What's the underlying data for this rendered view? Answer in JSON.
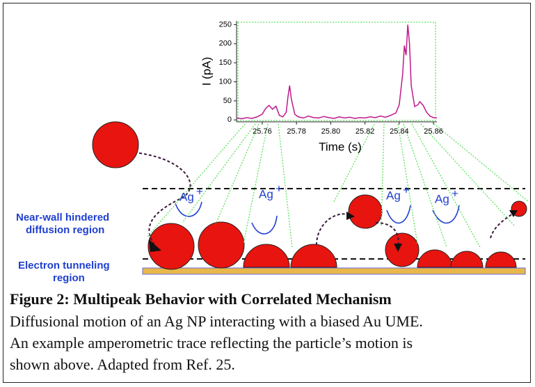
{
  "chart_data": {
    "type": "line",
    "xlabel": "Time (s)",
    "ylabel": "I (pA)",
    "x": [
      25.745,
      25.748,
      25.751,
      25.754,
      25.757,
      25.76,
      25.762,
      25.764,
      25.766,
      25.768,
      25.77,
      25.772,
      25.774,
      25.775,
      25.776,
      25.777,
      25.779,
      25.781,
      25.784,
      25.787,
      25.79,
      25.793,
      25.796,
      25.799,
      25.802,
      25.805,
      25.808,
      25.811,
      25.814,
      25.817,
      25.82,
      25.823,
      25.826,
      25.829,
      25.832,
      25.835,
      25.838,
      25.84,
      25.842,
      25.843,
      25.844,
      25.845,
      25.846,
      25.847,
      25.849,
      25.851,
      25.852,
      25.854,
      25.856,
      25.858,
      25.86,
      25.862
    ],
    "series": [
      {
        "color": "#c0188c",
        "values": [
          5,
          3,
          6,
          4,
          8,
          15,
          30,
          38,
          28,
          36,
          12,
          8,
          20,
          60,
          90,
          55,
          15,
          8,
          5,
          10,
          6,
          5,
          9,
          6,
          4,
          8,
          5,
          7,
          4,
          6,
          5,
          8,
          6,
          10,
          7,
          12,
          18,
          40,
          120,
          195,
          170,
          250,
          200,
          90,
          35,
          40,
          48,
          38,
          20,
          10,
          6,
          5
        ]
      }
    ],
    "xlim": [
      25.745,
      25.862
    ],
    "ylim": [
      -5,
      260
    ],
    "xticks": [
      25.76,
      25.78,
      {
        "value": 25.8,
        "label": "25.80"
      },
      25.82,
      25.84,
      25.86
    ],
    "yticks": [
      0,
      50,
      100,
      150,
      200,
      250
    ]
  },
  "diagram": {
    "regions": [
      {
        "line1": "Near-wall hindered",
        "line2": "diffusion region"
      },
      {
        "line1": "Electron tunneling",
        "line2": "region"
      }
    ],
    "ions": [
      {
        "base": "Ag",
        "charge": "+"
      },
      {
        "base": "Ag",
        "charge": "+"
      },
      {
        "base": "Ag",
        "charge": "+"
      },
      {
        "base": "Ag",
        "charge": "+"
      }
    ]
  },
  "caption": {
    "title": "Figure 2: Multipeak Behavior with Correlated Mechanism",
    "lines": [
      "Diffusional motion of an Ag NP interacting with a biased Au UME.",
      "An example amperometric trace reflecting the particle’s motion is",
      "shown above. Adapted from Ref. 25."
    ]
  }
}
